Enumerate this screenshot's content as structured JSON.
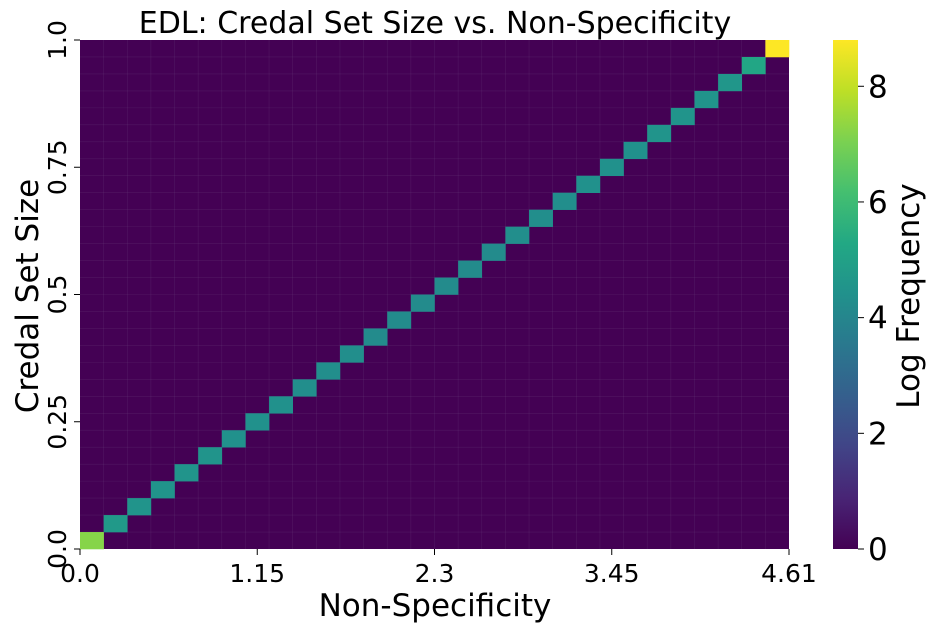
{
  "chart_data": {
    "type": "heatmap",
    "title": "EDL: Credal Set Size vs. Non-Specificity",
    "xlabel": "Non-Specificity",
    "ylabel": "Credal Set Size",
    "colorbar_label": "Log Frequency",
    "colormap": "viridis",
    "x_ticks": [
      "0.0",
      "1.15",
      "2.3",
      "3.45",
      "4.61"
    ],
    "y_ticks": [
      "0.0",
      "0.25",
      "0.5",
      "0.75",
      "1.0"
    ],
    "colorbar_ticks": [
      "0",
      "2",
      "4",
      "6",
      "8"
    ],
    "xlim": [
      0,
      4.61
    ],
    "ylim": [
      0,
      1.0
    ],
    "vmin": 0,
    "vmax": 8.8,
    "n_bins_x": 30,
    "n_bins_y": 30,
    "background_value": 0,
    "cells": [
      {
        "x": 0,
        "y": 0,
        "value": 7.2
      },
      {
        "x": 1,
        "y": 1,
        "value": 4.7
      },
      {
        "x": 2,
        "y": 2,
        "value": 4.5
      },
      {
        "x": 3,
        "y": 3,
        "value": 4.5
      },
      {
        "x": 4,
        "y": 4,
        "value": 4.5
      },
      {
        "x": 5,
        "y": 5,
        "value": 4.5
      },
      {
        "x": 6,
        "y": 6,
        "value": 4.4
      },
      {
        "x": 7,
        "y": 7,
        "value": 4.4
      },
      {
        "x": 8,
        "y": 8,
        "value": 4.4
      },
      {
        "x": 9,
        "y": 9,
        "value": 4.3
      },
      {
        "x": 10,
        "y": 10,
        "value": 4.3
      },
      {
        "x": 11,
        "y": 11,
        "value": 4.3
      },
      {
        "x": 12,
        "y": 12,
        "value": 4.2
      },
      {
        "x": 13,
        "y": 13,
        "value": 4.2
      },
      {
        "x": 14,
        "y": 14,
        "value": 4.2
      },
      {
        "x": 15,
        "y": 15,
        "value": 4.2
      },
      {
        "x": 16,
        "y": 16,
        "value": 4.2
      },
      {
        "x": 17,
        "y": 17,
        "value": 4.2
      },
      {
        "x": 18,
        "y": 18,
        "value": 4.3
      },
      {
        "x": 19,
        "y": 19,
        "value": 4.3
      },
      {
        "x": 20,
        "y": 20,
        "value": 4.3
      },
      {
        "x": 21,
        "y": 21,
        "value": 4.4
      },
      {
        "x": 22,
        "y": 22,
        "value": 4.4
      },
      {
        "x": 23,
        "y": 23,
        "value": 4.4
      },
      {
        "x": 24,
        "y": 24,
        "value": 4.5
      },
      {
        "x": 25,
        "y": 25,
        "value": 4.5
      },
      {
        "x": 26,
        "y": 26,
        "value": 4.5
      },
      {
        "x": 27,
        "y": 27,
        "value": 4.6
      },
      {
        "x": 28,
        "y": 28,
        "value": 5.2
      },
      {
        "x": 29,
        "y": 29,
        "value": 8.8
      }
    ]
  }
}
